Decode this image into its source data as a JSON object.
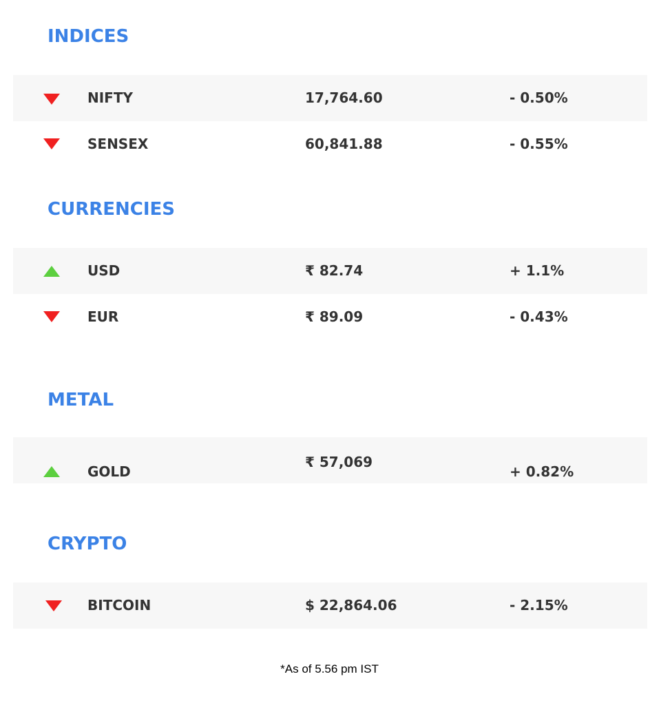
{
  "sections": {
    "indices": {
      "title": "INDICES",
      "rows": [
        {
          "name": "NIFTY",
          "price": "17,764.60",
          "change": "- 0.50%",
          "direction": "down"
        },
        {
          "name": "SENSEX",
          "price": "60,841.88",
          "change": "- 0.55%",
          "direction": "down"
        }
      ]
    },
    "currencies": {
      "title": "CURRENCIES",
      "rows": [
        {
          "name": "USD",
          "price": "₹ 82.74",
          "change": "+ 1.1%",
          "direction": "up"
        },
        {
          "name": "EUR",
          "price": "₹ 89.09",
          "change": "- 0.43%",
          "direction": "down"
        }
      ]
    },
    "metal": {
      "title": "METAL",
      "rows": [
        {
          "name": "GOLD",
          "price": "₹ 57,069",
          "change": "+ 0.82%",
          "direction": "up"
        }
      ]
    },
    "crypto": {
      "title": "CRYPTO",
      "rows": [
        {
          "name": "BITCOIN",
          "price": "$ 22,864.06",
          "change": "- 2.15%",
          "direction": "down"
        }
      ]
    }
  },
  "footnote": "*As of 5.56 pm IST",
  "colors": {
    "title": "#3b82e6",
    "up_arrow": "#5ccf3f",
    "down_arrow": "#f02020",
    "row_shade": "#f7f7f7",
    "text": "#333333"
  },
  "icons": {
    "down": "down-triangle-icon",
    "up": "up-triangle-icon"
  }
}
